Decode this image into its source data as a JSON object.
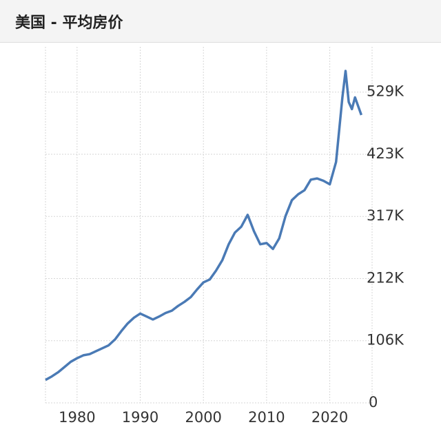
{
  "chart_data": {
    "type": "line",
    "title": "美国 - 平均房价",
    "x": [
      1975,
      1976,
      1977,
      1978,
      1979,
      1980,
      1981,
      1982,
      1983,
      1984,
      1985,
      1986,
      1987,
      1988,
      1989,
      1990,
      1991,
      1992,
      1993,
      1994,
      1995,
      1996,
      1997,
      1998,
      1999,
      2000,
      2001,
      2002,
      2003,
      2004,
      2005,
      2006,
      2007,
      2008,
      2009,
      2010,
      2011,
      2012,
      2013,
      2014,
      2015,
      2016,
      2017,
      2018,
      2019,
      2020,
      2021,
      2022,
      2022.5,
      2023,
      2023.5,
      2024,
      2024.5,
      2025
    ],
    "series": [
      {
        "name": "平均房价",
        "color": "#4a7ab5",
        "values": [
          39000,
          45000,
          52000,
          61000,
          70000,
          76000,
          81000,
          83000,
          88000,
          93000,
          98000,
          108000,
          122000,
          135000,
          145000,
          152000,
          147000,
          142000,
          147000,
          153000,
          157000,
          165000,
          172000,
          180000,
          193000,
          205000,
          210000,
          225000,
          243000,
          270000,
          290000,
          300000,
          320000,
          292000,
          270000,
          272000,
          262000,
          280000,
          318000,
          345000,
          355000,
          362000,
          380000,
          382000,
          378000,
          372000,
          410000,
          520000,
          565000,
          512000,
          500000,
          520000,
          505000,
          490000
        ]
      }
    ],
    "xlim": [
      1975,
      2026.7
    ],
    "xticks": [
      1980,
      1990,
      2000,
      2010,
      2020
    ],
    "ylim": [
      0,
      606000
    ],
    "yticks": [
      0,
      {
        "value": 105800,
        "label": "106K"
      },
      {
        "value": 211600,
        "label": "212K"
      },
      {
        "value": 317400,
        "label": "317K"
      },
      {
        "value": 423200,
        "label": "423K"
      },
      {
        "value": 529000,
        "label": "529K"
      }
    ],
    "grid": true
  }
}
